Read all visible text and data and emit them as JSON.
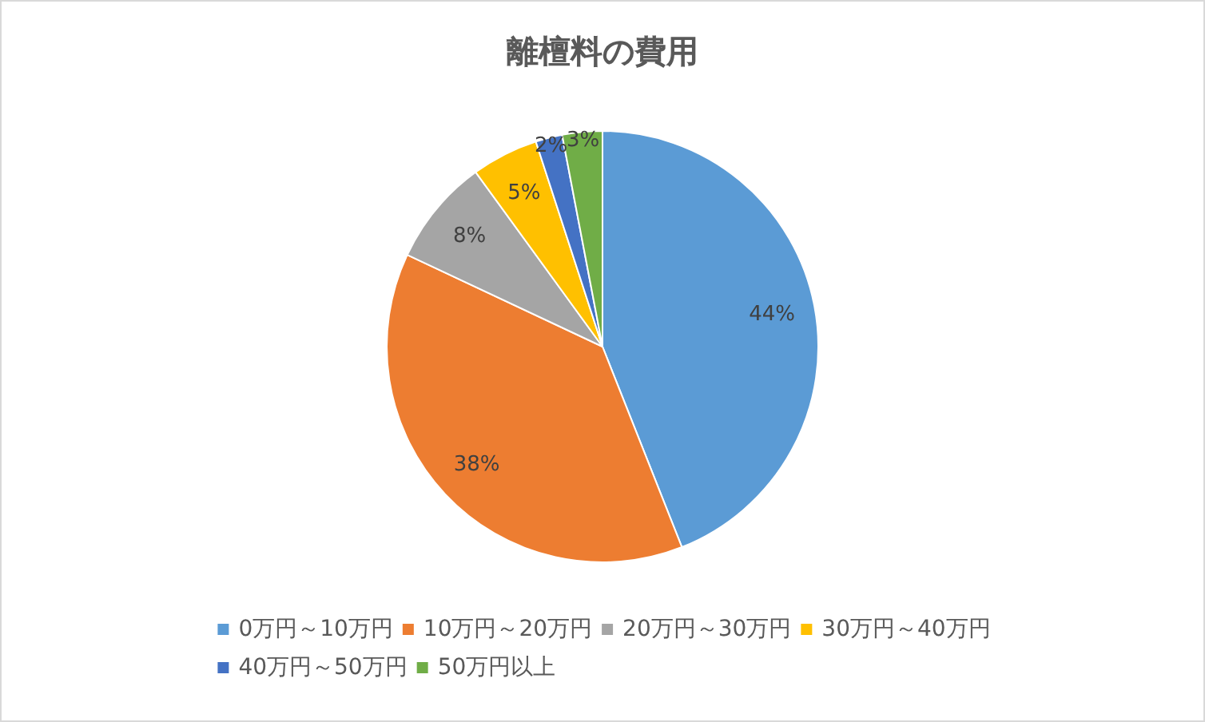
{
  "chart_data": {
    "type": "pie",
    "title": "離檀料の費用",
    "categories": [
      "0万円～10万円",
      "10万円～20万円",
      "20万円～30万円",
      "30万円～40万円",
      "40万円～50万円",
      "50万円以上"
    ],
    "values": [
      44,
      38,
      8,
      5,
      2,
      3
    ],
    "colors": [
      "#5b9bd5",
      "#ed7d31",
      "#a5a5a5",
      "#ffc000",
      "#4472c4",
      "#70ad47"
    ],
    "value_labels": [
      "44%",
      "38%",
      "8%",
      "5%",
      "2%",
      "3%"
    ],
    "legend": "bottom"
  }
}
